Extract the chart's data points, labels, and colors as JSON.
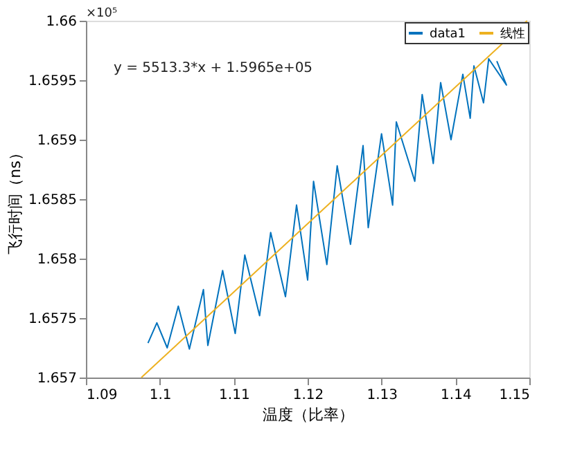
{
  "chart_data": {
    "type": "line",
    "xlabel": "温度（比率）",
    "ylabel": "飞行时间（ns）",
    "xlim": [
      1.09,
      1.15
    ],
    "xticks": [
      1.09,
      1.1,
      1.11,
      1.12,
      1.13,
      1.14,
      1.15
    ],
    "ylim": [
      1.657,
      1.66
    ],
    "yticks": [
      1.657,
      1.6575,
      1.658,
      1.6585,
      1.659,
      1.6595,
      1.66
    ],
    "series": [
      {
        "name": "data1",
        "color": "#0072bd",
        "x": [
          1.0984,
          1.0996,
          1.101,
          1.1025,
          1.104,
          1.1059,
          1.1065,
          1.1085,
          1.1102,
          1.1115,
          1.1135,
          1.115,
          1.117,
          1.1185,
          1.12,
          1.1208,
          1.1226,
          1.124,
          1.1258,
          1.1275,
          1.1282,
          1.13,
          1.1315,
          1.132,
          1.1345,
          1.1355,
          1.137,
          1.138,
          1.1394,
          1.141,
          1.142,
          1.1425,
          1.1438,
          1.1445,
          1.1469,
          1.1456
        ],
        "values": [
          1.65729,
          1.65746,
          1.65725,
          1.6576,
          1.65724,
          1.65774,
          1.65727,
          1.6579,
          1.65737,
          1.65803,
          1.65752,
          1.65822,
          1.65768,
          1.65845,
          1.65782,
          1.65865,
          1.65795,
          1.65878,
          1.65812,
          1.65895,
          1.65826,
          1.65905,
          1.65845,
          1.65915,
          1.65865,
          1.65938,
          1.6588,
          1.65948,
          1.659,
          1.65955,
          1.65918,
          1.65962,
          1.65931,
          1.65968,
          1.65946,
          1.65966
        ]
      },
      {
        "name": "线性",
        "color": "#edb120",
        "x": [
          1.0975,
          1.1497
        ],
        "values": [
          1.657,
          1.66
        ]
      }
    ],
    "annotations": [
      "y = 5513.3*x + 1.5965e+05",
      "×10⁵"
    ],
    "legend": "top right",
    "grid": false,
    "marker": "none",
    "line_style": "solid"
  }
}
